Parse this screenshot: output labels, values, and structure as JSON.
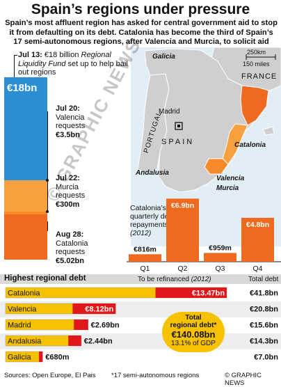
{
  "title": "Spain’s regions under pressure",
  "intro": "Spain’s most affluent region has asked for central government aid to stop it from defaulting on its debt. Catalonia has become the third of Spain’s 17 semi-autonomous regions, after Valencia and Murcia, to solicit aid",
  "colors": {
    "fund": "#2b8fd6",
    "valencia": "#f7a040",
    "murcia": "#f48a2a",
    "catalonia": "#ef6a1f",
    "yellow": "#f6c200",
    "red": "#e0171b",
    "band": "#d9d9d9",
    "sea": "#e2eef6",
    "land": "#cfcfcf"
  },
  "timeline": [
    {
      "date": "Jul 13:",
      "text1": "€18 billion ",
      "italic": "Regional Liquidity Fund",
      "text2": " set up to help bail out regions",
      "bar_label": "€18bn"
    },
    {
      "date": "Jul 20:",
      "lines": [
        "Valencia",
        "requests"
      ],
      "amount": "€3.5bn"
    },
    {
      "date": "Jul 22:",
      "lines": [
        "Murcia",
        "requests"
      ],
      "amount": "€300m"
    },
    {
      "date": "Aug 28:",
      "lines": [
        "Catalonia",
        "requests"
      ],
      "amount": "€5.02bn"
    }
  ],
  "map": {
    "scale_km": "250km",
    "scale_mi": "150 miles",
    "labels": {
      "galicia": "Galicia",
      "france": "FRANCE",
      "madrid": "Madrid",
      "portugal": "PORTUGAL",
      "spain": "SPAIN",
      "catalonia": "Catalonia",
      "andalusia": "Andalusia",
      "valencia": "Valencia",
      "murcia": "Murcia"
    }
  },
  "quarterly": {
    "title_lines": [
      "Catalonia’s",
      "quarterly debt",
      "repayments"
    ],
    "year": "(2012)"
  },
  "debt_section": {
    "heading": "Highest regional debt",
    "refinance_label": "To be refinanced ",
    "refinance_year": "(2012)",
    "total_label": "Total debt",
    "total_box": {
      "line1": "Total",
      "line2": "regional debt*",
      "value": "€140.08bn",
      "pct": "13.1% of GDP"
    }
  },
  "footer": {
    "sources": "Sources: Open Europe, El Pais",
    "note": "*17 semi-autonomous regions",
    "credit": "© GRAPHIC NEWS"
  },
  "watermark": "© GRAPHIC NEWS",
  "chart_data": [
    {
      "type": "bar",
      "title": "Catalonia’s quarterly debt repayments (2012)",
      "categories": [
        "Q1",
        "Q2",
        "Q3",
        "Q4"
      ],
      "values": [
        816,
        6900,
        959,
        4800
      ],
      "value_labels": [
        "€816m",
        "€6.9bn",
        "€959m",
        "€4.8bn"
      ],
      "unit": "€m"
    },
    {
      "type": "bar",
      "title": "Highest regional debt",
      "categories": [
        "Catalonia",
        "Valencia",
        "Madrid",
        "Andalusia",
        "Galicia"
      ],
      "series": [
        {
          "name": "To be refinanced (2012)",
          "values": [
            13.47,
            8.12,
            2.69,
            2.44,
            0.68
          ],
          "labels": [
            "€13.47bn",
            "€8.12bn",
            "€2.69bn",
            "€2.44bn",
            "€680m"
          ]
        },
        {
          "name": "Total debt",
          "values": [
            41.8,
            20.8,
            15.6,
            14.3,
            7.0
          ],
          "labels": [
            "€41.8bn",
            "€20.8bn",
            "€15.6bn",
            "€14.3bn",
            "€7.0bn"
          ]
        }
      ],
      "unit": "€bn"
    }
  ]
}
